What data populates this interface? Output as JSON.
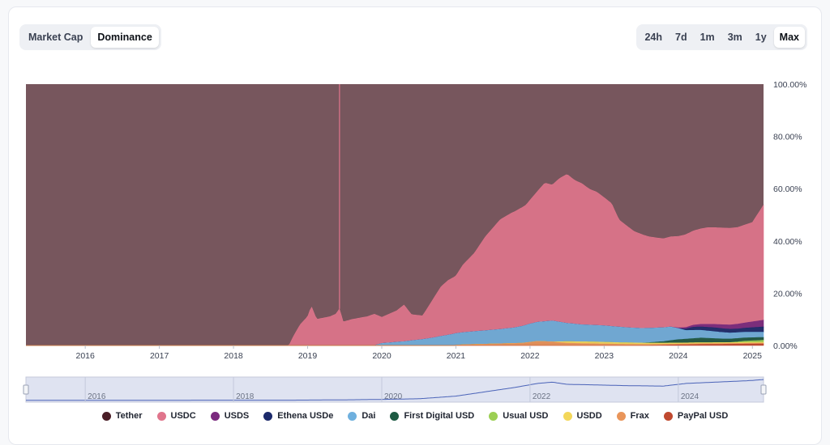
{
  "controls": {
    "mode_tabs": [
      {
        "label": "Market Cap",
        "active": false
      },
      {
        "label": "Dominance",
        "active": true
      }
    ],
    "range_tabs": [
      {
        "label": "24h",
        "active": false
      },
      {
        "label": "7d",
        "active": false
      },
      {
        "label": "1m",
        "active": false
      },
      {
        "label": "3m",
        "active": false
      },
      {
        "label": "1y",
        "active": false
      },
      {
        "label": "Max",
        "active": true
      }
    ]
  },
  "chart_data": {
    "type": "area",
    "stacked": true,
    "title": "",
    "xlabel": "",
    "ylabel": "",
    "x_ticks": [
      "2016",
      "2017",
      "2018",
      "2019",
      "2020",
      "2021",
      "2022",
      "2023",
      "2024",
      "2025"
    ],
    "y_ticks": [
      "0.00%",
      "20.00%",
      "40.00%",
      "60.00%",
      "80.00%",
      "100.00%"
    ],
    "ylim": [
      0,
      100
    ],
    "xlim": [
      2015.2,
      2025.15
    ],
    "y_axis_position": "right",
    "grid": false,
    "legend_position": "bottom",
    "series": [
      {
        "name": "Tether",
        "color": "#4a1e27",
        "points": [
          [
            2015.2,
            100
          ],
          [
            2025.15,
            100
          ]
        ]
      },
      {
        "name": "USDC",
        "color": "#e0758c",
        "points": [
          [
            2015.2,
            0
          ],
          [
            2018.75,
            0
          ],
          [
            2018.8,
            3
          ],
          [
            2018.9,
            8
          ],
          [
            2019.0,
            11
          ],
          [
            2019.05,
            15
          ],
          [
            2019.12,
            10
          ],
          [
            2019.3,
            11
          ],
          [
            2019.38,
            12
          ],
          [
            2019.43,
            14
          ],
          [
            2019.48,
            9
          ],
          [
            2019.6,
            10
          ],
          [
            2019.8,
            11
          ],
          [
            2019.9,
            12
          ],
          [
            2020.0,
            10
          ],
          [
            2020.2,
            12
          ],
          [
            2020.3,
            14
          ],
          [
            2020.4,
            10
          ],
          [
            2020.55,
            9
          ],
          [
            2020.7,
            15
          ],
          [
            2020.8,
            19
          ],
          [
            2020.9,
            21
          ],
          [
            2021.0,
            22
          ],
          [
            2021.1,
            26
          ],
          [
            2021.25,
            30
          ],
          [
            2021.4,
            36
          ],
          [
            2021.6,
            42
          ],
          [
            2021.75,
            44
          ],
          [
            2021.85,
            45
          ],
          [
            2021.95,
            46
          ],
          [
            2022.1,
            50
          ],
          [
            2022.2,
            53
          ],
          [
            2022.3,
            52
          ],
          [
            2022.4,
            55
          ],
          [
            2022.5,
            57
          ],
          [
            2022.6,
            55
          ],
          [
            2022.7,
            54
          ],
          [
            2022.8,
            52
          ],
          [
            2022.9,
            51
          ],
          [
            2023.0,
            49
          ],
          [
            2023.1,
            47
          ],
          [
            2023.2,
            41
          ],
          [
            2023.4,
            37
          ],
          [
            2023.6,
            35
          ],
          [
            2023.8,
            34
          ],
          [
            2024.0,
            35
          ],
          [
            2024.2,
            36
          ],
          [
            2024.4,
            37
          ],
          [
            2024.6,
            37
          ],
          [
            2024.8,
            37
          ],
          [
            2025.0,
            38
          ],
          [
            2025.15,
            44
          ]
        ]
      },
      {
        "name": "USDS",
        "color": "#7b2a7e",
        "points": [
          [
            2015.2,
            0
          ],
          [
            2023.9,
            0
          ],
          [
            2024.2,
            0.8
          ],
          [
            2024.6,
            1.5
          ],
          [
            2024.9,
            2
          ],
          [
            2025.15,
            2.6
          ]
        ]
      },
      {
        "name": "Ethena USDe",
        "color": "#1c2a6b",
        "points": [
          [
            2015.2,
            0
          ],
          [
            2024.0,
            0
          ],
          [
            2024.2,
            1.2
          ],
          [
            2024.5,
            1.5
          ],
          [
            2024.8,
            1.4
          ],
          [
            2025.15,
            2
          ]
        ]
      },
      {
        "name": "Dai",
        "color": "#6fb0de",
        "points": [
          [
            2015.2,
            0
          ],
          [
            2019.9,
            0
          ],
          [
            2020.0,
            0.8
          ],
          [
            2020.3,
            1.5
          ],
          [
            2020.6,
            2.5
          ],
          [
            2020.8,
            3.5
          ],
          [
            2021.0,
            4.5
          ],
          [
            2021.3,
            5
          ],
          [
            2021.6,
            5.5
          ],
          [
            2021.8,
            6
          ],
          [
            2022.0,
            7
          ],
          [
            2022.3,
            8
          ],
          [
            2022.5,
            7
          ],
          [
            2022.7,
            6.5
          ],
          [
            2023.0,
            6.3
          ],
          [
            2023.3,
            5.8
          ],
          [
            2023.6,
            5.5
          ],
          [
            2023.9,
            5.2
          ],
          [
            2024.1,
            3.3
          ],
          [
            2024.4,
            2.8
          ],
          [
            2024.7,
            2.3
          ],
          [
            2025.0,
            2.1
          ],
          [
            2025.15,
            2
          ]
        ]
      },
      {
        "name": "First Digital USD",
        "color": "#1d5a43",
        "points": [
          [
            2015.2,
            0
          ],
          [
            2023.5,
            0
          ],
          [
            2023.8,
            0.6
          ],
          [
            2024.0,
            1.3
          ],
          [
            2024.3,
            1.8
          ],
          [
            2024.6,
            1.4
          ],
          [
            2025.0,
            1.2
          ],
          [
            2025.15,
            1.1
          ]
        ]
      },
      {
        "name": "Usual USD",
        "color": "#9ccf54",
        "points": [
          [
            2015.2,
            0
          ],
          [
            2024.7,
            0
          ],
          [
            2024.9,
            0.5
          ],
          [
            2025.15,
            0.8
          ]
        ]
      },
      {
        "name": "USDD",
        "color": "#f3d75a",
        "points": [
          [
            2015.2,
            0
          ],
          [
            2022.3,
            0
          ],
          [
            2022.5,
            0.6
          ],
          [
            2022.8,
            0.7
          ],
          [
            2023.2,
            0.6
          ],
          [
            2023.6,
            0.5
          ],
          [
            2024.0,
            0.4
          ],
          [
            2025.15,
            0.3
          ]
        ]
      },
      {
        "name": "Frax",
        "color": "#e9955a",
        "points": [
          [
            2015.2,
            0
          ],
          [
            2020.95,
            0
          ],
          [
            2021.1,
            0.3
          ],
          [
            2021.5,
            0.6
          ],
          [
            2021.9,
            0.9
          ],
          [
            2022.1,
            1.6
          ],
          [
            2022.3,
            1.4
          ],
          [
            2022.5,
            0.9
          ],
          [
            2022.8,
            0.7
          ],
          [
            2023.2,
            0.5
          ],
          [
            2023.6,
            0.4
          ],
          [
            2024.0,
            0.3
          ],
          [
            2025.15,
            0.3
          ]
        ]
      },
      {
        "name": "PayPal USD",
        "color": "#c0492f",
        "points": [
          [
            2015.2,
            0
          ],
          [
            2023.6,
            0
          ],
          [
            2023.9,
            0.2
          ],
          [
            2024.3,
            0.4
          ],
          [
            2024.7,
            0.5
          ],
          [
            2025.15,
            0.6
          ]
        ]
      }
    ],
    "navigator": {
      "x_ticks": [
        "2016",
        "2018",
        "2020",
        "2022",
        "2024"
      ],
      "points": [
        [
          2015.2,
          0.4
        ],
        [
          2017.0,
          0.6
        ],
        [
          2018.8,
          0.8
        ],
        [
          2019.5,
          1.5
        ],
        [
          2020.0,
          2.5
        ],
        [
          2020.5,
          4
        ],
        [
          2021.0,
          10
        ],
        [
          2021.4,
          20
        ],
        [
          2021.8,
          30
        ],
        [
          2022.1,
          39
        ],
        [
          2022.3,
          42
        ],
        [
          2022.5,
          37
        ],
        [
          2022.8,
          36
        ],
        [
          2023.3,
          34
        ],
        [
          2023.8,
          33
        ],
        [
          2024.1,
          39
        ],
        [
          2024.5,
          42
        ],
        [
          2024.9,
          45
        ],
        [
          2025.0,
          46
        ],
        [
          2025.15,
          48
        ]
      ]
    }
  }
}
